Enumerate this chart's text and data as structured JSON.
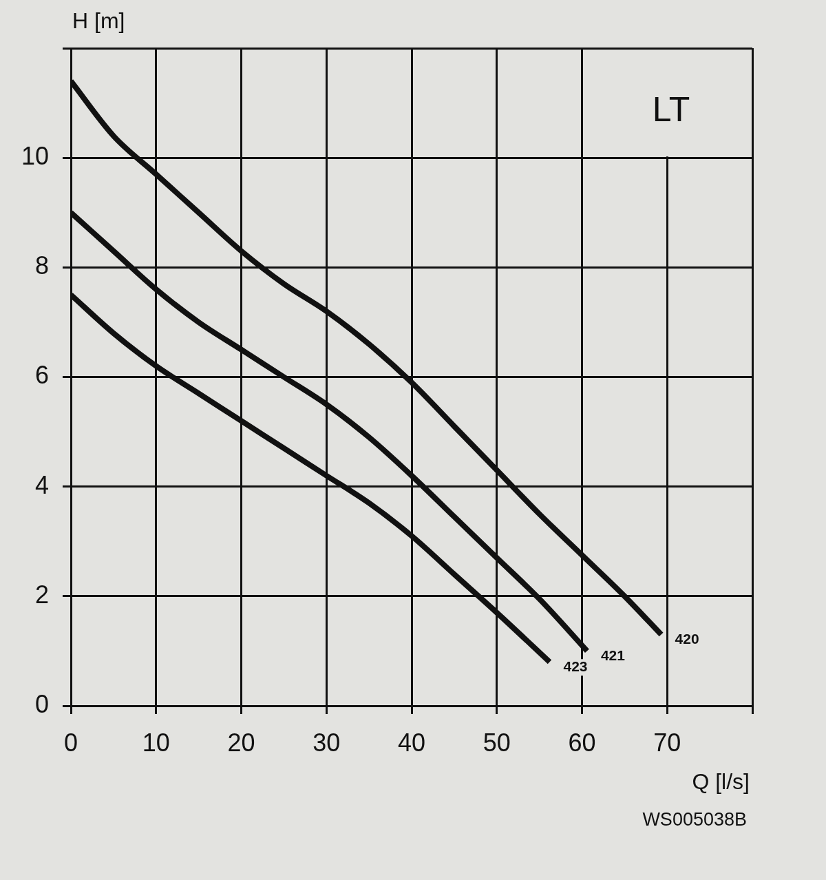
{
  "chart_data": {
    "type": "line",
    "xlabel": "Q [l/s]",
    "ylabel": "H [m]",
    "annotations": [
      "LT",
      "WS005038B"
    ],
    "xlim": [
      0,
      80
    ],
    "ylim": [
      0,
      12
    ],
    "xticks": [
      0,
      10,
      20,
      30,
      40,
      50,
      60,
      70,
      {
        "value": 80,
        "label": null
      }
    ],
    "yticks": [
      0,
      2,
      4,
      6,
      8,
      10,
      {
        "value": 12,
        "label": null
      }
    ],
    "grid": true,
    "marker": "none",
    "line_style": "solid",
    "series": [
      {
        "name": "420",
        "color": "#111111",
        "x": [
          0,
          5,
          10,
          15,
          20,
          25,
          30,
          35,
          40,
          45,
          50,
          55,
          60,
          65,
          69.3
        ],
        "values": [
          11.4,
          10.4,
          9.7,
          9.0,
          8.3,
          7.7,
          7.2,
          6.6,
          5.9,
          5.1,
          4.3,
          3.5,
          2.75,
          2.0,
          1.3
        ]
      },
      {
        "name": "421",
        "color": "#111111",
        "x": [
          0,
          5,
          10,
          15,
          20,
          25,
          30,
          35,
          40,
          45,
          50,
          55,
          60.6
        ],
        "values": [
          9.0,
          8.3,
          7.6,
          7.0,
          6.5,
          6.0,
          5.5,
          4.9,
          4.2,
          3.45,
          2.7,
          1.95,
          1.0
        ]
      },
      {
        "name": "423",
        "color": "#111111",
        "x": [
          0,
          5,
          10,
          15,
          20,
          25,
          30,
          35,
          40,
          45,
          50,
          56.2
        ],
        "values": [
          7.5,
          6.8,
          6.2,
          5.7,
          5.2,
          4.7,
          4.2,
          3.7,
          3.1,
          2.4,
          1.7,
          0.8
        ]
      }
    ]
  }
}
